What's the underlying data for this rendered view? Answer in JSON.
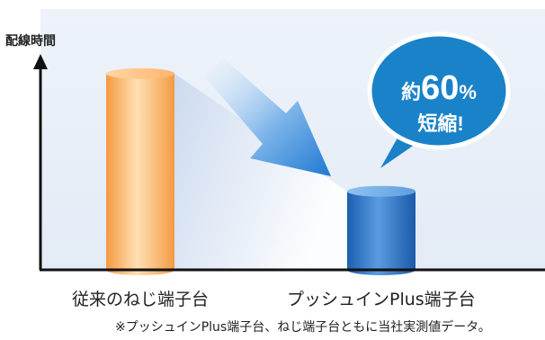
{
  "chart_data": {
    "type": "bar",
    "ylabel": "配線時間",
    "categories": [
      "従来のねじ端子台",
      "プッシュインPlus端子台"
    ],
    "values": [
      100,
      40
    ],
    "ylim": [
      0,
      110
    ],
    "grid": false,
    "colors": {
      "conventional": "#F5A24E",
      "pushin": "#2A74C4",
      "background": "#E8EFF9",
      "callout": "#1A82C9"
    },
    "callout": {
      "line1_prefix": "約",
      "line1_value": "60",
      "line1_unit": "%",
      "line2": "短縮!"
    },
    "note": "※プッシュインPlus端子台、ねじ端子台ともに当社実測値データ。"
  }
}
